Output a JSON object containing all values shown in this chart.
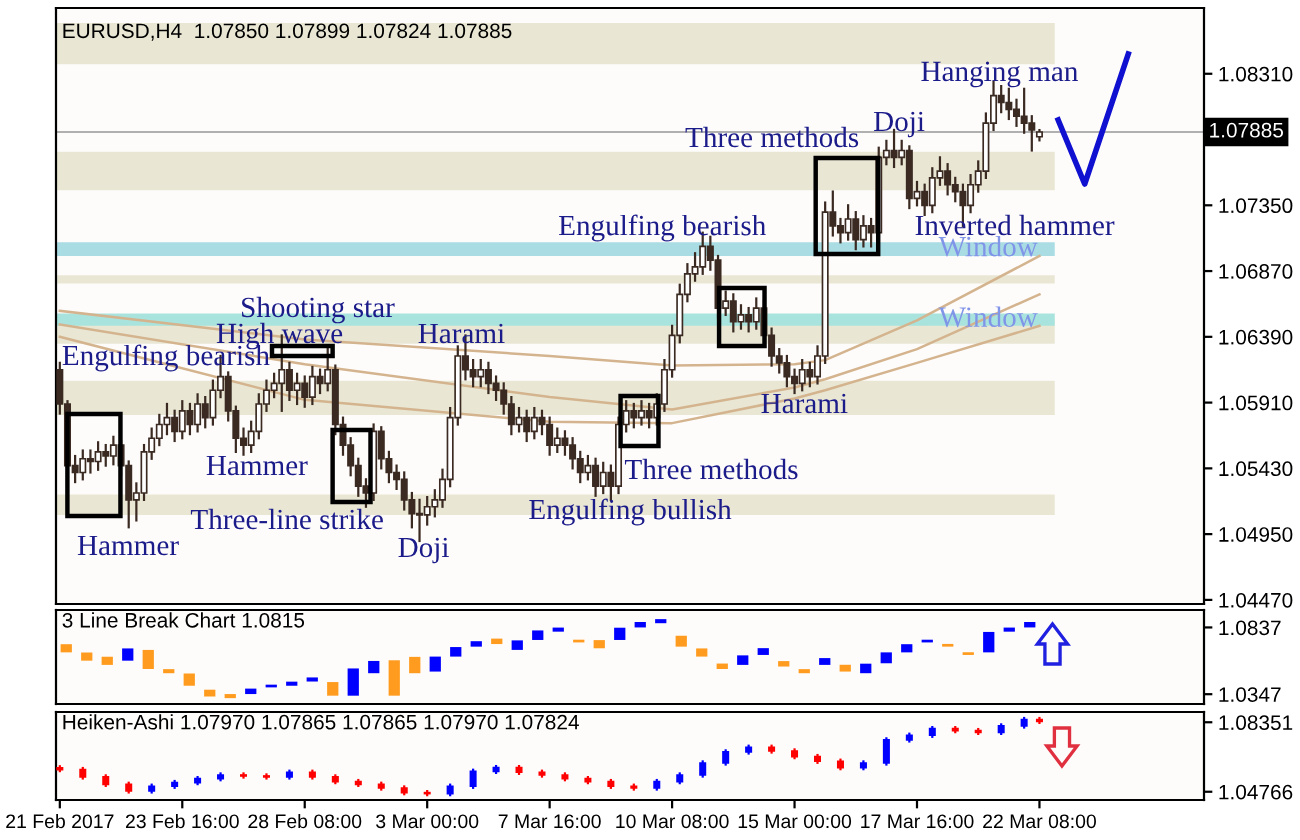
{
  "chart_data": [
    {
      "type": "candlestick",
      "title": "EURUSD,H4  1.07850 1.07899 1.07824 1.07885",
      "color": "#3a2a22",
      "categories": [
        null,
        null,
        null,
        null,
        null,
        null,
        null,
        null,
        null,
        null,
        null,
        null,
        null,
        null,
        null,
        null,
        null,
        null,
        null,
        null,
        null,
        null,
        null,
        null,
        null,
        null,
        null,
        null,
        null,
        null,
        null,
        null,
        null,
        null,
        null,
        null,
        null,
        null,
        null,
        null,
        null,
        null,
        null,
        null,
        null,
        null,
        null,
        null,
        null,
        null,
        null,
        null,
        null,
        null,
        null,
        null,
        null,
        null,
        null,
        null,
        null,
        null,
        null,
        null,
        null,
        null,
        null,
        null,
        null,
        null,
        null,
        null,
        null,
        null,
        null,
        null,
        null,
        null,
        null,
        null,
        null,
        null,
        null,
        null,
        null,
        null,
        null,
        null,
        null,
        null,
        null,
        null,
        null,
        null,
        null,
        null,
        null,
        null,
        null,
        null,
        null,
        null,
        null,
        null,
        null,
        null,
        null,
        null,
        null,
        null,
        null,
        null,
        null,
        null,
        null,
        null,
        null,
        null,
        null,
        null,
        null,
        null,
        null,
        null,
        null,
        null,
        null,
        null,
        null,
        null,
        null,
        null,
        null,
        null,
        null,
        null,
        null,
        null,
        null,
        null,
        null,
        null,
        null,
        null,
        null,
        null,
        null,
        null,
        null,
        null
      ],
      "ohlc": [
        [
          1.0615,
          1.062,
          1.0583,
          1.059
        ],
        [
          1.059,
          1.0592,
          1.0538,
          1.0545
        ],
        [
          1.0545,
          1.0552,
          1.0533,
          1.054
        ],
        [
          1.054,
          1.0556,
          1.0535,
          1.055
        ],
        [
          1.055,
          1.0556,
          1.054,
          1.0548
        ],
        [
          1.0548,
          1.0562,
          1.0542,
          1.0555
        ],
        [
          1.0555,
          1.056,
          1.0545,
          1.0552
        ],
        [
          1.0552,
          1.0566,
          1.0546,
          1.056
        ],
        [
          1.056,
          1.0563,
          1.0538,
          1.0545
        ],
        [
          1.0545,
          1.0548,
          1.05,
          1.052
        ],
        [
          1.052,
          1.0532,
          1.0505,
          1.0525
        ],
        [
          1.0525,
          1.056,
          1.052,
          1.0555
        ],
        [
          1.0555,
          1.0572,
          1.055,
          1.0565
        ],
        [
          1.0565,
          1.0582,
          1.056,
          1.0575
        ],
        [
          1.0575,
          1.059,
          1.0568,
          1.058
        ],
        [
          1.058,
          1.0585,
          1.0563,
          1.057
        ],
        [
          1.057,
          1.0592,
          1.0565,
          1.0585
        ],
        [
          1.0585,
          1.059,
          1.0568,
          1.0575
        ],
        [
          1.0575,
          1.0597,
          1.057,
          1.059
        ],
        [
          1.059,
          1.0595,
          1.0573,
          1.058
        ],
        [
          1.058,
          1.0607,
          1.0575,
          1.06
        ],
        [
          1.06,
          1.0625,
          1.0595,
          1.061
        ],
        [
          1.061,
          1.0613,
          1.0578,
          1.0585
        ],
        [
          1.0585,
          1.0588,
          1.0555,
          1.0565
        ],
        [
          1.0565,
          1.0572,
          1.0553,
          1.056
        ],
        [
          1.056,
          1.0577,
          1.0555,
          1.057
        ],
        [
          1.057,
          1.0597,
          1.0565,
          1.059
        ],
        [
          1.059,
          1.0607,
          1.0585,
          1.06
        ],
        [
          1.06,
          1.0612,
          1.0595,
          1.0605
        ],
        [
          1.0605,
          1.064,
          1.0585,
          1.0615
        ],
        [
          1.0615,
          1.062,
          1.0593,
          1.06
        ],
        [
          1.06,
          1.0612,
          1.059,
          1.0605
        ],
        [
          1.0605,
          1.061,
          1.0588,
          1.0595
        ],
        [
          1.0595,
          1.0617,
          1.059,
          1.061
        ],
        [
          1.061,
          1.0615,
          1.0598,
          1.0605
        ],
        [
          1.0605,
          1.0632,
          1.06,
          1.0615
        ],
        [
          1.0615,
          1.0618,
          1.0568,
          1.0575
        ],
        [
          1.0575,
          1.058,
          1.0553,
          1.056
        ],
        [
          1.056,
          1.0565,
          1.0538,
          1.0545
        ],
        [
          1.0545,
          1.055,
          1.0523,
          1.053
        ],
        [
          1.053,
          1.0535,
          1.0515,
          1.0525
        ],
        [
          1.0525,
          1.0575,
          1.052,
          1.057
        ],
        [
          1.057,
          1.0573,
          1.0543,
          1.055
        ],
        [
          1.055,
          1.0555,
          1.0533,
          1.054
        ],
        [
          1.054,
          1.0545,
          1.0528,
          1.0535
        ],
        [
          1.0535,
          1.054,
          1.0513,
          1.052
        ],
        [
          1.052,
          1.0525,
          1.05,
          1.051
        ],
        [
          1.051,
          1.052,
          1.049,
          1.0509
        ],
        [
          1.0509,
          1.0522,
          1.0502,
          1.0515
        ],
        [
          1.0515,
          1.0527,
          1.0508,
          1.052
        ],
        [
          1.052,
          1.0542,
          1.0515,
          1.0535
        ],
        [
          1.0535,
          1.0587,
          1.053,
          1.058
        ],
        [
          1.058,
          1.0632,
          1.0575,
          1.0625
        ],
        [
          1.0625,
          1.064,
          1.0608,
          1.0615
        ],
        [
          1.0615,
          1.0622,
          1.0603,
          1.061
        ],
        [
          1.061,
          1.0622,
          1.0603,
          1.0615
        ],
        [
          1.0615,
          1.062,
          1.0598,
          1.0605
        ],
        [
          1.0605,
          1.061,
          1.0593,
          1.06
        ],
        [
          1.06,
          1.0605,
          1.0583,
          1.059
        ],
        [
          1.059,
          1.0595,
          1.0568,
          1.0575
        ],
        [
          1.0575,
          1.0587,
          1.057,
          1.058
        ],
        [
          1.058,
          1.0585,
          1.0563,
          1.057
        ],
        [
          1.057,
          1.0587,
          1.0565,
          1.058
        ],
        [
          1.058,
          1.0585,
          1.0568,
          1.0575
        ],
        [
          1.0575,
          1.058,
          1.0553,
          1.056
        ],
        [
          1.056,
          1.0572,
          1.0555,
          1.0565
        ],
        [
          1.0565,
          1.057,
          1.0553,
          1.056
        ],
        [
          1.056,
          1.0565,
          1.0543,
          1.055
        ],
        [
          1.055,
          1.0555,
          1.0533,
          1.054
        ],
        [
          1.054,
          1.0552,
          1.0535,
          1.0545
        ],
        [
          1.0545,
          1.055,
          1.0523,
          1.053
        ],
        [
          1.053,
          1.0547,
          1.0525,
          1.054
        ],
        [
          1.054,
          1.0545,
          1.052,
          1.053
        ],
        [
          1.053,
          1.058,
          1.0525,
          1.0575
        ],
        [
          1.0575,
          1.0592,
          1.057,
          1.0585
        ],
        [
          1.0585,
          1.059,
          1.0573,
          1.058
        ],
        [
          1.058,
          1.0592,
          1.0575,
          1.0585
        ],
        [
          1.0585,
          1.059,
          1.0573,
          1.058
        ],
        [
          1.058,
          1.0597,
          1.0575,
          1.059
        ],
        [
          1.059,
          1.0622,
          1.0585,
          1.0615
        ],
        [
          1.0615,
          1.0647,
          1.061,
          1.064
        ],
        [
          1.064,
          1.0677,
          1.0635,
          1.067
        ],
        [
          1.067,
          1.0692,
          1.0665,
          1.0685
        ],
        [
          1.0685,
          1.07,
          1.068,
          1.069
        ],
        [
          1.069,
          1.0715,
          1.0685,
          1.0705
        ],
        [
          1.0705,
          1.0712,
          1.0688,
          1.0695
        ],
        [
          1.0695,
          1.0698,
          1.0653,
          1.066
        ],
        [
          1.066,
          1.0672,
          1.0655,
          1.0665
        ],
        [
          1.0665,
          1.067,
          1.0643,
          1.065
        ],
        [
          1.065,
          1.0662,
          1.0645,
          1.0655
        ],
        [
          1.0655,
          1.066,
          1.0643,
          1.065
        ],
        [
          1.065,
          1.0667,
          1.0645,
          1.066
        ],
        [
          1.066,
          1.0665,
          1.0633,
          1.064
        ],
        [
          1.064,
          1.0645,
          1.0618,
          1.0625
        ],
        [
          1.0625,
          1.063,
          1.0613,
          1.062
        ],
        [
          1.062,
          1.0625,
          1.0603,
          1.061
        ],
        [
          1.061,
          1.0615,
          1.0598,
          1.0605
        ],
        [
          1.0605,
          1.0622,
          1.06,
          1.0615
        ],
        [
          1.0615,
          1.062,
          1.0603,
          1.061
        ],
        [
          1.061,
          1.0632,
          1.0605,
          1.0625
        ],
        [
          1.0625,
          1.0737,
          1.062,
          1.073
        ],
        [
          1.073,
          1.0745,
          1.0713,
          1.072
        ],
        [
          1.072,
          1.0725,
          1.0708,
          1.0715
        ],
        [
          1.0715,
          1.0735,
          1.071,
          1.0725
        ],
        [
          1.0725,
          1.073,
          1.0703,
          1.071
        ],
        [
          1.071,
          1.0727,
          1.0705,
          1.072
        ],
        [
          1.072,
          1.0725,
          1.0705,
          1.0715
        ],
        [
          1.0715,
          1.0777,
          1.071,
          1.077
        ],
        [
          1.077,
          1.0782,
          1.0765,
          1.0775
        ],
        [
          1.0775,
          1.079,
          1.0763,
          1.077
        ],
        [
          1.077,
          1.0782,
          1.0765,
          1.0775
        ],
        [
          1.0775,
          1.0778,
          1.0733,
          1.074
        ],
        [
          1.074,
          1.0752,
          1.0735,
          1.0745
        ],
        [
          1.0745,
          1.075,
          1.0728,
          1.0735
        ],
        [
          1.0735,
          1.0762,
          1.073,
          1.0755
        ],
        [
          1.0755,
          1.077,
          1.075,
          1.076
        ],
        [
          1.076,
          1.0765,
          1.0743,
          1.075
        ],
        [
          1.075,
          1.0755,
          1.0738,
          1.0745
        ],
        [
          1.0745,
          1.075,
          1.072,
          1.0735
        ],
        [
          1.0735,
          1.0757,
          1.073,
          1.075
        ],
        [
          1.075,
          1.0767,
          1.0745,
          1.076
        ],
        [
          1.076,
          1.0802,
          1.0755,
          1.0795
        ],
        [
          1.0795,
          1.0825,
          1.079,
          1.0815
        ],
        [
          1.0815,
          1.0822,
          1.0803,
          1.081
        ],
        [
          1.081,
          1.082,
          1.0798,
          1.0805
        ],
        [
          1.0805,
          1.0812,
          1.0793,
          1.08
        ],
        [
          1.08,
          1.082,
          1.0788,
          1.0795
        ],
        [
          1.0795,
          1.08,
          1.0775,
          1.079
        ],
        [
          1.0785,
          1.07899,
          1.07824,
          1.07885
        ],
        null,
        null,
        null,
        null,
        null,
        null,
        null,
        null,
        null,
        null,
        null,
        null,
        null,
        null,
        null,
        null,
        null,
        null,
        null,
        null,
        null
      ],
      "series": [
        {
          "type": "line",
          "color": "#d4b48e",
          "values": [
            1.0658,
            null,
            null,
            null,
            null,
            null,
            null,
            null,
            null,
            null,
            null,
            null,
            null,
            null,
            null,
            null,
            null,
            null,
            null,
            null,
            null,
            null,
            null,
            null,
            null,
            null,
            null,
            null,
            null,
            null,
            null,
            null,
            1.0637,
            null,
            null,
            null,
            null,
            null,
            null,
            null,
            null,
            null,
            null,
            null,
            null,
            null,
            null,
            null,
            null,
            null,
            null,
            null,
            null,
            null,
            null,
            null,
            null,
            null,
            null,
            null,
            null,
            null,
            null,
            null,
            1.0625,
            null,
            null,
            null,
            null,
            null,
            null,
            null,
            null,
            null,
            null,
            null,
            null,
            null,
            null,
            null,
            1.0618,
            null,
            null,
            null,
            null,
            null,
            null,
            null,
            null,
            null,
            null,
            null,
            null,
            null,
            null,
            null,
            1.0619,
            null,
            null,
            null,
            1.0622,
            null,
            null,
            null,
            null,
            null,
            null,
            null,
            null,
            null,
            null,
            null,
            1.0651,
            null,
            null,
            null,
            null,
            null,
            null,
            null,
            null,
            null,
            null,
            null,
            null,
            null,
            null,
            null,
            1.0698,
            null,
            null,
            null,
            null,
            null,
            null,
            null,
            null,
            null,
            null,
            null,
            null,
            null,
            null,
            null,
            null,
            null,
            null,
            null,
            null,
            null
          ]
        },
        {
          "type": "line",
          "color": "#d4b48e",
          "values": [
            1.0648,
            null,
            null,
            null,
            null,
            null,
            null,
            null,
            null,
            null,
            null,
            null,
            null,
            null,
            null,
            null,
            null,
            null,
            null,
            null,
            null,
            null,
            null,
            null,
            null,
            null,
            null,
            null,
            null,
            null,
            null,
            null,
            1.0619,
            null,
            null,
            null,
            null,
            null,
            null,
            null,
            null,
            null,
            null,
            null,
            null,
            null,
            null,
            null,
            null,
            null,
            null,
            null,
            null,
            null,
            null,
            null,
            null,
            null,
            null,
            null,
            null,
            null,
            null,
            null,
            1.0595,
            null,
            null,
            null,
            null,
            null,
            null,
            null,
            null,
            null,
            null,
            null,
            null,
            null,
            null,
            null,
            1.0586,
            null,
            null,
            null,
            null,
            null,
            null,
            null,
            null,
            null,
            null,
            null,
            null,
            null,
            null,
            null,
            1.0602,
            null,
            null,
            null,
            1.0608,
            null,
            null,
            null,
            null,
            null,
            null,
            null,
            null,
            null,
            null,
            null,
            1.063,
            null,
            null,
            null,
            null,
            null,
            null,
            null,
            null,
            null,
            null,
            null,
            null,
            null,
            null,
            null,
            1.067,
            null,
            null,
            null,
            null,
            null,
            null,
            null,
            null,
            null,
            null,
            null,
            null,
            null,
            null,
            null,
            null,
            null,
            null,
            null,
            null,
            null
          ]
        },
        {
          "type": "line",
          "color": "#d4b48e",
          "values": [
            1.0639,
            null,
            null,
            null,
            null,
            null,
            null,
            null,
            null,
            null,
            null,
            null,
            null,
            null,
            null,
            null,
            null,
            null,
            null,
            null,
            null,
            null,
            null,
            null,
            null,
            null,
            null,
            null,
            null,
            null,
            null,
            null,
            1.0593,
            null,
            null,
            null,
            null,
            null,
            null,
            null,
            null,
            null,
            null,
            null,
            null,
            null,
            null,
            null,
            null,
            null,
            null,
            null,
            null,
            null,
            null,
            null,
            null,
            null,
            null,
            null,
            null,
            null,
            null,
            null,
            1.0577,
            null,
            null,
            null,
            null,
            null,
            null,
            null,
            null,
            null,
            null,
            null,
            null,
            null,
            null,
            null,
            1.0576,
            null,
            null,
            null,
            null,
            null,
            null,
            null,
            null,
            null,
            null,
            null,
            null,
            null,
            null,
            null,
            1.0594,
            null,
            null,
            null,
            1.06,
            null,
            null,
            null,
            null,
            null,
            null,
            null,
            null,
            null,
            null,
            null,
            1.062,
            null,
            null,
            null,
            null,
            null,
            null,
            null,
            null,
            null,
            null,
            null,
            null,
            null,
            null,
            null,
            1.0647,
            null,
            null,
            null,
            null,
            null,
            null,
            null,
            null,
            null,
            null,
            null,
            null,
            null,
            null,
            null,
            null,
            null,
            null,
            null,
            null,
            null
          ]
        }
      ],
      "ylim": [
        1.0444,
        1.0879
      ],
      "yticks": [
        {
          "value": 1.0447,
          "label": "1.04470"
        },
        {
          "value": 1.0495,
          "label": "1.04950"
        },
        {
          "value": 1.0543,
          "label": "1.05430"
        },
        {
          "value": 1.0591,
          "label": "1.05910"
        },
        {
          "value": 1.0639,
          "label": "1.06390"
        },
        {
          "value": 1.0687,
          "label": "1.06870"
        },
        {
          "value": 1.0735,
          "label": "1.07350"
        },
        {
          "value": 1.0831,
          "label": "1.08310"
        }
      ],
      "tick_labels": "y",
      "bands": [
        {
          "axis": "y",
          "from": 1.0838,
          "to": 1.0868,
          "color": "#e9e7d4"
        },
        {
          "axis": "y",
          "from": 1.0746,
          "to": 1.0774,
          "color": "#e9e7d4"
        },
        {
          "axis": "y",
          "from": 1.0698,
          "to": 1.0708,
          "color": "#a9dde3",
          "label": "Window"
        },
        {
          "axis": "y",
          "from": 1.0678,
          "to": 1.0684,
          "color": "#e9e7d4"
        },
        {
          "axis": "y",
          "from": 1.0634,
          "to": 1.0652,
          "color": "#e9e7d4"
        },
        {
          "axis": "y",
          "from": 1.0647,
          "to": 1.0656,
          "color": "#a9e3dd",
          "label": "Window"
        },
        {
          "axis": "y",
          "from": 1.0582,
          "to": 1.0607,
          "color": "#e9e7d4"
        },
        {
          "axis": "y",
          "from": 1.0509,
          "to": 1.0524,
          "color": "#e9e7d4"
        }
      ],
      "ref_lines": [
        {
          "axis": "y",
          "value": 1.07885,
          "label": "1.07885",
          "color": "#b0b0b0"
        }
      ],
      "annotations": [
        "Engulfing bearish",
        "Hammer",
        "Hammer",
        "High wave",
        "Shooting star",
        "Three-line strike",
        "Doji",
        "Harami",
        "Engulfing bullish",
        "Three methods",
        "Engulfing bearish",
        "Harami",
        "Three methods",
        "Doji",
        "Hanging man",
        "Inverted hammer"
      ]
    },
    {
      "type": "bar",
      "title": "3 Line Break Chart 1.0815",
      "categories": [
        null,
        null,
        null,
        null,
        null,
        null,
        null,
        null,
        null,
        null,
        null,
        null,
        null,
        null,
        null,
        null,
        null,
        null,
        null,
        null,
        null,
        null,
        null,
        null,
        null,
        null,
        null,
        null,
        null,
        null,
        null,
        null,
        null,
        null,
        null,
        null,
        null,
        null,
        null,
        null,
        null,
        null,
        null,
        null,
        null,
        null,
        null,
        null,
        null,
        null,
        null,
        null,
        null,
        null,
        null,
        null
      ],
      "base": [
        1.0654,
        1.0593,
        1.0562,
        1.0593,
        1.0532,
        1.0501,
        1.0409,
        1.033,
        1.0318,
        1.0348,
        1.0397,
        1.0409,
        1.044,
        1.0336,
        1.0336,
        1.0501,
        1.0336,
        1.0501,
        1.0513,
        1.0623,
        1.0696,
        1.0715,
        1.0672,
        1.0745,
        1.0806,
        1.0727,
        1.0684,
        1.0745,
        1.0837,
        1.0868,
        1.0696,
        1.0623,
        1.0532,
        1.0562,
        1.0635,
        1.055,
        1.0501,
        1.0562,
        1.0513,
        1.0501,
        1.0574,
        1.0654,
        1.0727,
        1.0696,
        1.0635,
        1.0654,
        1.0806,
        1.0837,
        null,
        null,
        null,
        null,
        null,
        null,
        null,
        null
      ],
      "values": [
        0.006,
        0.006,
        0.006,
        0.009,
        0.014,
        0.003,
        0.009,
        0.005,
        0.003,
        0.004,
        0.002,
        0.003,
        0.003,
        0.01,
        0.02,
        0.009,
        0.026,
        0.012,
        0.011,
        0.007,
        0.004,
        0.004,
        0.007,
        0.007,
        0.003,
        0.002,
        0.006,
        0.009,
        0.004,
        0.003,
        0.008,
        0.006,
        0.004,
        0.007,
        0.005,
        0.004,
        0.003,
        0.005,
        0.005,
        0.007,
        0.008,
        0.006,
        0.002,
        0.002,
        0.002,
        0.015,
        0.003,
        0.004,
        null,
        null,
        null,
        null,
        null,
        null,
        null,
        null
      ],
      "colors": [
        "#ff9c1f",
        "#ff9c1f",
        "#ff9c1f",
        "#0000ff",
        "#ff9c1f",
        "#ff9c1f",
        "#ff9c1f",
        "#ff9c1f",
        "#ff9c1f",
        "#0000ff",
        "#0000ff",
        "#0000ff",
        "#0000ff",
        "#ff9c1f",
        "#0000ff",
        "#0000ff",
        "#ff9c1f",
        "#ff9c1f",
        "#0000ff",
        "#0000ff",
        "#0000ff",
        "#ff9c1f",
        "#0000ff",
        "#0000ff",
        "#0000ff",
        "#ff9c1f",
        "#ff9c1f",
        "#0000ff",
        "#0000ff",
        "#0000ff",
        "#ff9c1f",
        "#ff9c1f",
        "#ff9c1f",
        "#0000ff",
        "#0000ff",
        "#ff9c1f",
        "#ff9c1f",
        "#0000ff",
        "#ff9c1f",
        "#0000ff",
        "#0000ff",
        "#0000ff",
        "#0000ff",
        "#ff9c1f",
        "#ff9c1f",
        "#0000ff",
        "#0000ff",
        "#0000ff",
        null,
        null,
        null,
        null,
        null,
        null,
        null,
        null
      ],
      "ylim": [
        1.0275,
        1.0965
      ],
      "yticks": [
        1.0837,
        1.0347
      ],
      "tick_labels": "y"
    },
    {
      "type": "candlestick",
      "title": "Heiken-Ashi 1.07970 1.07865 1.07865 1.07970 1.07824",
      "categories": [
        "21 Feb 2017",
        null,
        null,
        null,
        null,
        null,
        null,
        null,
        null,
        null,
        null,
        null,
        null,
        null,
        null,
        null,
        "23 Feb 16:00",
        null,
        null,
        null,
        null,
        null,
        null,
        null,
        null,
        null,
        null,
        null,
        null,
        null,
        null,
        null,
        "28 Feb 08:00",
        null,
        null,
        null,
        null,
        null,
        null,
        null,
        null,
        null,
        null,
        null,
        null,
        null,
        null,
        null,
        "3 Mar 00:00",
        null,
        null,
        null,
        null,
        null,
        null,
        null,
        null,
        null,
        null,
        null,
        null,
        null,
        null,
        null,
        "7 Mar 16:00",
        null,
        null,
        null,
        null,
        null,
        null,
        null,
        null,
        null,
        null,
        null,
        null,
        null,
        null,
        null,
        "10 Mar 08:00",
        null,
        null,
        null,
        null,
        null,
        null,
        null,
        null,
        null,
        null,
        null,
        null,
        null,
        null,
        null,
        "15 Mar 00:00",
        null,
        null,
        null,
        null,
        null,
        null,
        null,
        null,
        null,
        null,
        null,
        null,
        null,
        null,
        null,
        "17 Mar 16:00",
        null,
        null,
        null,
        null,
        null,
        null,
        null,
        null,
        null,
        null,
        null,
        null,
        null,
        null,
        null,
        "22 Mar 08:00",
        null,
        null,
        null,
        null,
        null,
        null,
        null,
        null,
        null,
        null,
        null,
        null,
        null,
        null,
        null,
        null,
        null,
        null,
        null,
        null,
        null
      ],
      "ohlc": [
        [
          1.06,
          1.0608,
          1.0583,
          1.0591
        ],
        null,
        null,
        [
          1.0591,
          1.0599,
          1.0545,
          1.0553
        ],
        null,
        null,
        [
          1.0553,
          1.0561,
          1.0507,
          1.0515
        ],
        null,
        null,
        [
          1.0515,
          1.0523,
          1.0473,
          1.0481
        ],
        null,
        null,
        [
          1.0481,
          1.0513,
          1.0473,
          1.0505
        ],
        null,
        null,
        [
          1.0505,
          1.0532,
          1.0497,
          1.0524
        ],
        null,
        null,
        [
          1.0524,
          1.0552,
          1.0516,
          1.0544
        ],
        null,
        null,
        [
          1.0544,
          1.0571,
          1.0536,
          1.0563
        ],
        null,
        null,
        [
          1.0563,
          1.0571,
          1.055,
          1.0558
        ],
        null,
        null,
        [
          1.0558,
          1.0566,
          1.0545,
          1.0553
        ],
        null,
        null,
        [
          1.0553,
          1.0585,
          1.0545,
          1.0577
        ],
        null,
        null,
        [
          1.0577,
          1.0585,
          1.0545,
          1.0553
        ],
        null,
        null,
        [
          1.0553,
          1.0561,
          1.0521,
          1.0529
        ],
        null,
        null,
        [
          1.0529,
          1.0537,
          1.0507,
          1.0515
        ],
        null,
        null,
        [
          1.0515,
          1.0523,
          1.0488,
          1.0496
        ],
        null,
        null,
        [
          1.0496,
          1.0504,
          1.0464,
          1.0472
        ],
        null,
        null,
        [
          1.0472,
          1.048,
          1.0459,
          1.0467
        ],
        null,
        null,
        [
          1.0467,
          1.0513,
          1.0459,
          1.0505
        ],
        null,
        null,
        [
          1.0505,
          1.059,
          1.0497,
          1.0582
        ],
        null,
        null,
        [
          1.0582,
          1.0609,
          1.0574,
          1.0601
        ],
        null,
        null,
        [
          1.0601,
          1.0609,
          1.0569,
          1.0577
        ],
        null,
        null,
        [
          1.0577,
          1.0585,
          1.0555,
          1.0563
        ],
        null,
        null,
        [
          1.0563,
          1.0571,
          1.0536,
          1.0544
        ],
        null,
        null,
        [
          1.0544,
          1.0552,
          1.0521,
          1.0529
        ],
        null,
        null,
        [
          1.0529,
          1.0537,
          1.0497,
          1.0505
        ],
        null,
        null,
        [
          1.0505,
          1.0513,
          1.0488,
          1.0496
        ],
        null,
        null,
        [
          1.0496,
          1.0537,
          1.0488,
          1.0529
        ],
        null,
        null,
        [
          1.0529,
          1.0571,
          1.0521,
          1.0563
        ],
        null,
        null,
        [
          1.0563,
          1.0633,
          1.0555,
          1.0625
        ],
        null,
        null,
        [
          1.0625,
          1.069,
          1.0617,
          1.0682
        ],
        null,
        null,
        [
          1.0682,
          1.0714,
          1.0674,
          1.0706
        ],
        null,
        null,
        [
          1.0706,
          1.0714,
          1.0679,
          1.0687
        ],
        null,
        null,
        [
          1.0687,
          1.0695,
          1.065,
          1.0658
        ],
        null,
        null,
        [
          1.0658,
          1.0666,
          1.0626,
          1.0634
        ],
        null,
        null,
        [
          1.0634,
          1.0642,
          1.0593,
          1.0601
        ],
        null,
        null,
        [
          1.0601,
          1.0633,
          1.0593,
          1.0625
        ],
        null,
        null,
        [
          1.0625,
          1.0752,
          1.0617,
          1.0744
        ],
        null,
        null,
        [
          1.0744,
          1.0776,
          1.0736,
          1.0768
        ],
        null,
        null,
        [
          1.0768,
          1.081,
          1.076,
          1.0802
        ],
        null,
        null,
        [
          1.0802,
          1.081,
          1.0784,
          1.0792
        ],
        null,
        null,
        [
          1.0792,
          1.08,
          1.0775,
          1.0783
        ],
        null,
        null,
        [
          1.0783,
          1.0824,
          1.0775,
          1.0816
        ],
        null,
        null,
        [
          1.0816,
          1.0857,
          1.0808,
          1.0849
        ],
        null,
        [
          1.0849,
          1.0857,
          1.0832,
          1.084
        ],
        null,
        null,
        null,
        null,
        null,
        null,
        null,
        null,
        null,
        null,
        null,
        null,
        null,
        null,
        null,
        null,
        null,
        null,
        null,
        null,
        null
      ],
      "colors": [
        "#ff0000",
        null,
        null,
        "#ff0000",
        null,
        null,
        "#ff0000",
        null,
        null,
        "#ff0000",
        null,
        null,
        "#0000ff",
        null,
        null,
        "#0000ff",
        null,
        null,
        "#0000ff",
        null,
        null,
        "#0000ff",
        null,
        null,
        "#ff0000",
        null,
        null,
        "#ff0000",
        null,
        null,
        "#0000ff",
        null,
        null,
        "#ff0000",
        null,
        null,
        "#ff0000",
        null,
        null,
        "#ff0000",
        null,
        null,
        "#ff0000",
        null,
        null,
        "#ff0000",
        null,
        null,
        "#ff0000",
        null,
        null,
        "#0000ff",
        null,
        null,
        "#0000ff",
        null,
        null,
        "#0000ff",
        null,
        null,
        "#ff0000",
        null,
        null,
        "#ff0000",
        null,
        null,
        "#ff0000",
        null,
        null,
        "#ff0000",
        null,
        null,
        "#ff0000",
        null,
        null,
        "#ff0000",
        null,
        null,
        "#0000ff",
        null,
        null,
        "#0000ff",
        null,
        null,
        "#0000ff",
        null,
        null,
        "#0000ff",
        null,
        null,
        "#0000ff",
        null,
        null,
        "#ff0000",
        null,
        null,
        "#ff0000",
        null,
        null,
        "#ff0000",
        null,
        null,
        "#ff0000",
        null,
        null,
        "#0000ff",
        null,
        null,
        "#0000ff",
        null,
        null,
        "#0000ff",
        null,
        null,
        "#0000ff",
        null,
        null,
        "#ff0000",
        null,
        null,
        "#ff0000",
        null,
        null,
        "#0000ff",
        null,
        null,
        "#0000ff",
        null,
        "#ff0000",
        null,
        null,
        null,
        null,
        null,
        null,
        null,
        null,
        null,
        null,
        null,
        null,
        null,
        null,
        null,
        null,
        null,
        null,
        null,
        null,
        null
      ],
      "ylim": [
        1.0434,
        1.0888
      ],
      "yticks": [
        1.08351,
        1.04766
      ]
    }
  ]
}
